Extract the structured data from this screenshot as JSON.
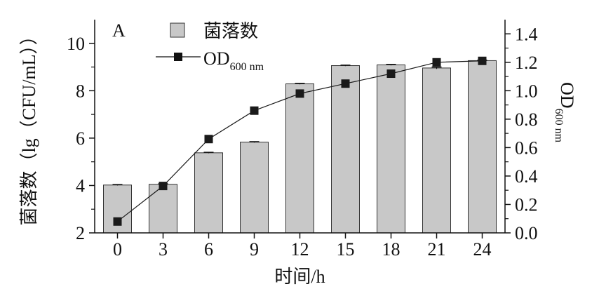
{
  "panel_label": "A",
  "chart_data": {
    "type": "bar+line",
    "x": [
      "0",
      "3",
      "6",
      "9",
      "12",
      "15",
      "18",
      "21",
      "24"
    ],
    "xlabel": "时间/h",
    "ylabel_left": "菌落数（lg（CFU/mL））",
    "ylabel_right": "OD",
    "ylabel_right_sub": "600 nm",
    "ylim_left": [
      2,
      11
    ],
    "yticks_left": [
      2,
      4,
      6,
      8,
      10
    ],
    "ylim_right": [
      0,
      1.5
    ],
    "yticks_right": [
      "0.0",
      "0.2",
      "0.4",
      "0.6",
      "0.8",
      "1.0",
      "1.2",
      "1.4"
    ],
    "series": [
      {
        "name": "菌落数",
        "kind": "bar",
        "axis": "left",
        "values": [
          4.02,
          4.05,
          5.38,
          5.83,
          8.29,
          9.06,
          9.09,
          8.96,
          9.27
        ],
        "errors": [
          0.02,
          0.02,
          0.02,
          0.02,
          0.02,
          0.02,
          0.02,
          0.04,
          0.02
        ],
        "color": "#c8c8c8"
      },
      {
        "name": "OD",
        "name_sub": "600 nm",
        "kind": "line",
        "axis": "right",
        "values": [
          0.08,
          0.33,
          0.66,
          0.86,
          0.98,
          1.05,
          1.12,
          1.2,
          1.21
        ],
        "color": "#1a1a1a"
      }
    ]
  }
}
